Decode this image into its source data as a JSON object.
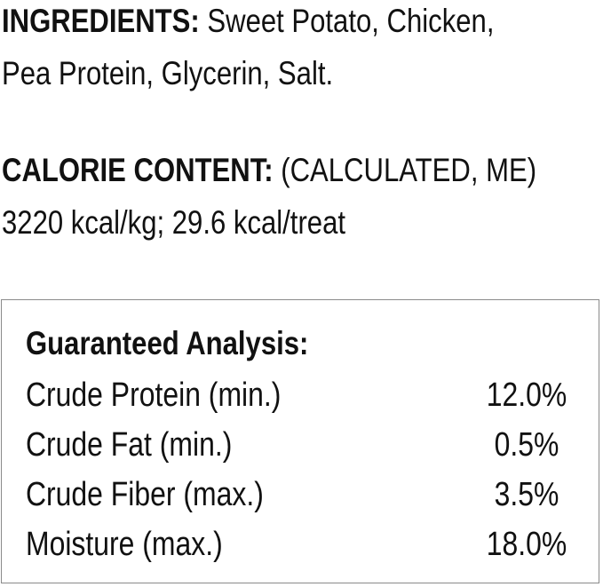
{
  "ingredients": {
    "label": "INGREDIENTS:",
    "line1": " Sweet Potato, Chicken,",
    "line2": "Pea Protein, Glycerin, Salt."
  },
  "calorie": {
    "label": "CALORIE CONTENT:",
    "note": " (CALCULATED, ME)",
    "value": "3220 kcal/kg; 29.6 kcal/treat"
  },
  "analysis": {
    "title": "Guaranteed Analysis:",
    "rows": [
      {
        "name": "Crude Protein (min.)",
        "value": "12.0%"
      },
      {
        "name": "Crude Fat (min.)",
        "value": "0.5%"
      },
      {
        "name": "Crude Fiber (max.)",
        "value": "3.5%"
      },
      {
        "name": "Moisture (max.)",
        "value": "18.0%"
      }
    ]
  }
}
